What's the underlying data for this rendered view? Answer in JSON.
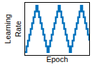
{
  "chart_data": {
    "type": "line",
    "x_label": "Epoch",
    "y_label": "Learning\nRate",
    "x": [
      0,
      1,
      2,
      3,
      4,
      5,
      6,
      7,
      8,
      9,
      10,
      11,
      12,
      13,
      14,
      15,
      16,
      17,
      18,
      19,
      20,
      21,
      22,
      23,
      24,
      25,
      26,
      27,
      28,
      29,
      30,
      31,
      32,
      33,
      34,
      35,
      36,
      37,
      38,
      39,
      40,
      41,
      42,
      43,
      44,
      45,
      46
    ],
    "values": [
      0.1,
      0.2,
      0.3,
      0.4,
      0.5,
      0.6,
      0.7,
      0.8,
      0.9,
      0.8,
      0.7,
      0.6,
      0.5,
      0.4,
      0.3,
      0.2,
      0.1,
      0.2,
      0.3,
      0.4,
      0.5,
      0.6,
      0.7,
      0.8,
      0.9,
      0.8,
      0.7,
      0.6,
      0.5,
      0.4,
      0.3,
      0.2,
      0.1,
      0.2,
      0.3,
      0.4,
      0.5,
      0.6,
      0.7,
      0.8,
      0.9,
      0.8,
      0.7,
      0.6,
      0.5,
      0.4,
      0.3
    ],
    "color": "#0072bd",
    "line_style": "steps",
    "xlim": [
      0,
      46
    ],
    "ylim": [
      0.05,
      0.95
    ],
    "tick_labels": false,
    "grid": false
  }
}
